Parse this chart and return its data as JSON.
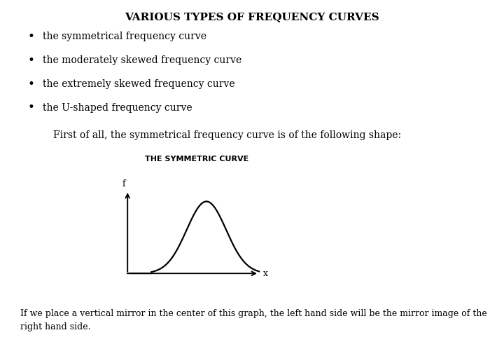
{
  "title": "VARIOUS TYPES OF FREQUENCY CURVES",
  "bullet_items": [
    "the symmetrical frequency curve",
    "the moderately skewed frequency curve",
    "the extremely skewed frequency curve",
    "the U-shaped frequency curve"
  ],
  "intro_text": "First of all, the symmetrical frequency curve is of the following shape:",
  "curve_title": "THE SYMMETRIC CURVE",
  "xlabel": "x",
  "ylabel": "f",
  "footer_text": "If we place a vertical mirror in the center of this graph, the left hand side will be the mirror image of the\nright hand side.",
  "background_color": "#ffffff",
  "text_color": "#000000",
  "curve_color": "#000000",
  "title_fontsize": 11,
  "body_fontsize": 10,
  "curve_title_fontsize": 8,
  "axis_label_fontsize": 9,
  "footer_fontsize": 9
}
